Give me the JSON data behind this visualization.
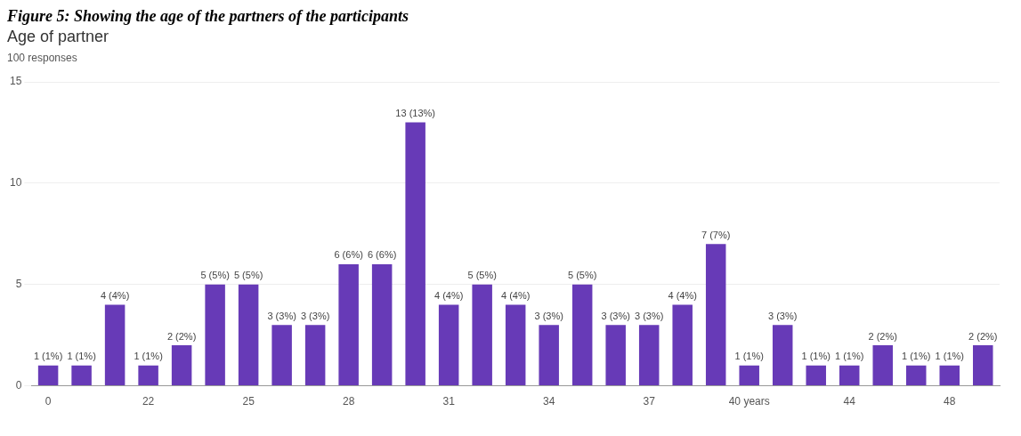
{
  "chart_data": {
    "type": "bar",
    "title": "Age of partner",
    "subtitle": "100 responses",
    "annotations": [
      "Figure 5: Showing the age of the partners of the participants"
    ],
    "categories": [
      "0",
      null,
      null,
      "22",
      null,
      null,
      "25",
      null,
      null,
      "28",
      null,
      null,
      "31",
      null,
      null,
      "34",
      null,
      null,
      "37",
      null,
      null,
      "40 years",
      null,
      null,
      "44",
      null,
      null,
      "48",
      null
    ],
    "values": [
      1,
      1,
      4,
      1,
      2,
      5,
      5,
      3,
      3,
      6,
      6,
      13,
      4,
      5,
      4,
      3,
      5,
      3,
      3,
      4,
      7,
      1,
      3,
      1,
      1,
      2,
      1,
      1,
      2
    ],
    "value_labels": [
      "1 (1%)",
      "1 (1%)",
      "4 (4%)",
      "1 (1%)",
      "2 (2%)",
      "5 (5%)",
      "5 (5%)",
      "3 (3%)",
      "3 (3%)",
      "6 (6%)",
      "6 (6%)",
      "13 (13%)",
      "4 (4%)",
      "5 (5%)",
      "4 (4%)",
      "3 (3%)",
      "5 (5%)",
      "3 (3%)",
      "3 (3%)",
      "4 (4%)",
      "7 (7%)",
      "1 (1%)",
      "3 (3%)",
      "1 (1%)",
      "1 (1%)",
      "2 (2%)",
      "1 (1%)",
      "1 (1%)",
      "2 (2%)"
    ],
    "color": "#673ab7",
    "ylim": [
      0,
      15
    ],
    "yticks": [
      0,
      5,
      10,
      15
    ],
    "grid": "y",
    "legend": false
  }
}
